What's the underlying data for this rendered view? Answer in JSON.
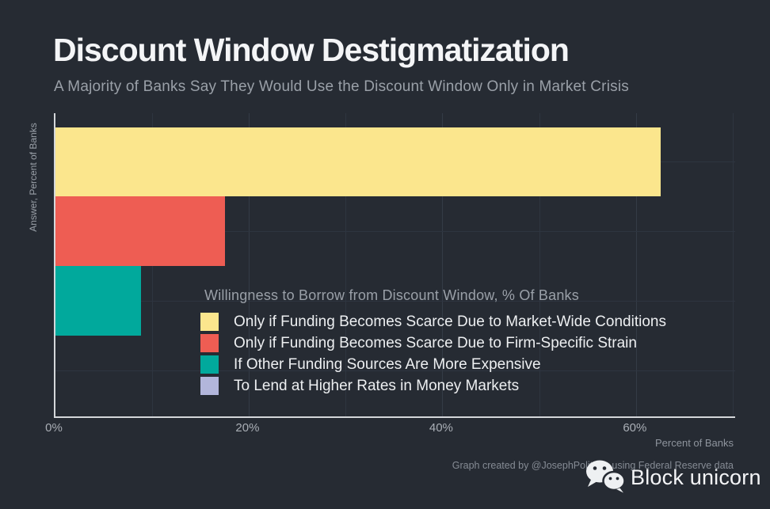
{
  "colors": {
    "background": "#262b33",
    "title_text": "#f4f5f7",
    "muted_text": "#9aa0a8",
    "tick_text": "#a9aeb5",
    "axis_title_text": "#8e949d",
    "footer_text": "#858b94",
    "axis_line": "#d4d7da",
    "grid_major": "#343b46",
    "grid_minor": "#2e3540",
    "legend_text": "#edeff1"
  },
  "chart_data": {
    "type": "bar",
    "orientation": "horizontal",
    "title": "Discount Window Destigmatization",
    "subtitle": "A Majority of Banks Say They Would Use the Discount Window Only in Market Crisis",
    "categories": [
      "Only if Funding Becomes Scarce Due to Market-Wide Conditions",
      "Only if Funding Becomes Scarce Due to Firm-Specific Strain",
      "If Other Funding Sources Are More Expensive",
      "To Lend at Higher Rates in Money Markets"
    ],
    "values": [
      62.5,
      17.5,
      8.8,
      0
    ],
    "colors": [
      "#fbe68d",
      "#ee5d53",
      "#01a99c",
      "#b2b6db"
    ],
    "xlabel": "Percent of Banks",
    "ylabel": "Answer, Percent of Banks",
    "xlim": [
      0,
      70.2
    ],
    "x_ticks": [
      {
        "value": 0,
        "label": "0%"
      },
      {
        "value": 20,
        "label": "20%"
      },
      {
        "value": 40,
        "label": "40%"
      },
      {
        "value": 60,
        "label": "60%"
      }
    ],
    "x_minor_ticks": [
      10,
      30,
      50,
      70
    ],
    "grid": "vertical major+minor, horizontal at category centers",
    "legend_title": "Willingness to Borrow from Discount Window, % Of Banks",
    "legend_position": "inside bottom-center"
  },
  "footer": {
    "credit": "Graph created by @JosephPolitano using Federal Reserve data"
  },
  "brand": {
    "name": "Block unicorn",
    "icon": "wechat-icon"
  }
}
